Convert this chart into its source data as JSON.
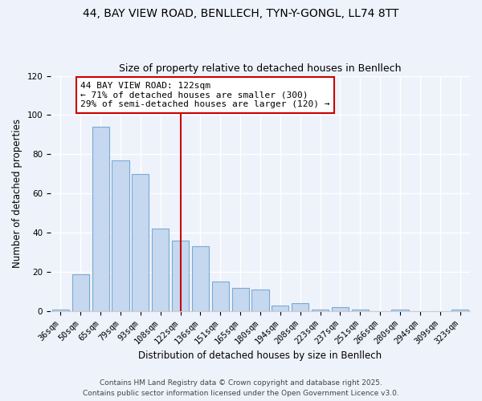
{
  "title1": "44, BAY VIEW ROAD, BENLLECH, TYN-Y-GONGL, LL74 8TT",
  "title2": "Size of property relative to detached houses in Benllech",
  "xlabel": "Distribution of detached houses by size in Benllech",
  "ylabel": "Number of detached properties",
  "categories": [
    "36sqm",
    "50sqm",
    "65sqm",
    "79sqm",
    "93sqm",
    "108sqm",
    "122sqm",
    "136sqm",
    "151sqm",
    "165sqm",
    "180sqm",
    "194sqm",
    "208sqm",
    "223sqm",
    "237sqm",
    "251sqm",
    "266sqm",
    "280sqm",
    "294sqm",
    "309sqm",
    "323sqm"
  ],
  "values": [
    1,
    19,
    94,
    77,
    70,
    42,
    36,
    33,
    15,
    12,
    11,
    3,
    4,
    1,
    2,
    1,
    0,
    1,
    0,
    0,
    1
  ],
  "bar_color": "#c5d8f0",
  "bar_edge_color": "#7aaad4",
  "vline_color": "#cc0000",
  "annotation_line1": "44 BAY VIEW ROAD: 122sqm",
  "annotation_line2": "← 71% of detached houses are smaller (300)",
  "annotation_line3": "29% of semi-detached houses are larger (120) →",
  "annotation_box_color": "#cc0000",
  "ylim": [
    0,
    120
  ],
  "yticks": [
    0,
    20,
    40,
    60,
    80,
    100,
    120
  ],
  "footer1": "Contains HM Land Registry data © Crown copyright and database right 2025.",
  "footer2": "Contains public sector information licensed under the Open Government Licence v3.0.",
  "background_color": "#eef2fb",
  "grid_color": "#ffffff",
  "title_fontsize": 10,
  "subtitle_fontsize": 9,
  "axis_label_fontsize": 8.5,
  "tick_fontsize": 7.5,
  "annotation_fontsize": 8,
  "footer_fontsize": 6.5
}
